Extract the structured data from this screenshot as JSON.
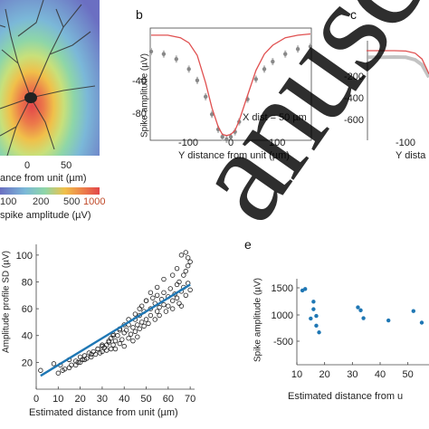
{
  "panel_a": {
    "xaxis_label": "ance from unit (µm)",
    "xticks": [
      "0",
      "50"
    ],
    "colorbar_ticks": [
      "100",
      "200",
      "500",
      "1000"
    ],
    "colorbar_label": "spike amplitude (µV)"
  },
  "panel_b": {
    "letter": "b",
    "ylabel": "Spike amplitude (µV)",
    "xlabel": "Y distance from unit (µm)",
    "annotation": "X dist = 50 µm",
    "yticks": [
      "-40",
      "-80"
    ],
    "xticks": [
      "-100",
      "0",
      "100"
    ]
  },
  "panel_c": {
    "letter": "c",
    "yticks": [
      "-200",
      "-400",
      "-600"
    ],
    "xticks": [
      "-100"
    ],
    "xlabel": "Y dista"
  },
  "panel_d": {
    "ylabel": "Amplitude profile SD (µV)",
    "xlabel": "Estimated distance from unit (µm)",
    "yticks": [
      "20",
      "40",
      "60",
      "80",
      "100"
    ],
    "xticks": [
      "0",
      "10",
      "20",
      "30",
      "40",
      "50",
      "60",
      "70"
    ]
  },
  "panel_e": {
    "letter": "e",
    "ylabel": "Spike amplitude (µV)",
    "xlabel": "Estimated distance from u",
    "yticks": [
      "1500",
      "1000",
      "-500"
    ],
    "xticks": [
      "10",
      "20",
      "30",
      "40",
      "50"
    ]
  },
  "chart_data": [
    {
      "type": "line",
      "panel": "b",
      "xlabel": "Y distance from unit (µm)",
      "ylabel": "Spike amplitude (µV)",
      "xlim": [
        -190,
        190
      ],
      "ylim": [
        -100,
        -12
      ],
      "series": [
        {
          "style": "red-model",
          "x": [
            -190,
            -150,
            -120,
            -100,
            -80,
            -60,
            -45,
            -30,
            -20,
            -10,
            0,
            10,
            20,
            40,
            60,
            80,
            100,
            130,
            160,
            190
          ],
          "y": [
            -17,
            -17,
            -19,
            -23,
            -33,
            -55,
            -75,
            -90,
            -96,
            -97,
            -96,
            -93,
            -85,
            -65,
            -45,
            -32,
            -25,
            -19,
            -17,
            -16
          ]
        },
        {
          "style": "grey-data",
          "x": [
            -190,
            -160,
            -130,
            -100,
            -80,
            -60,
            -45,
            -30,
            -20,
            -10,
            0,
            10,
            20,
            40,
            60,
            80,
            100,
            130,
            160,
            190
          ],
          "y": [
            -30,
            -32,
            -36,
            -44,
            -53,
            -66,
            -80,
            -92,
            -98,
            -100,
            -98,
            -94,
            -86,
            -68,
            -52,
            -44,
            -38,
            -32,
            -28,
            -26
          ]
        }
      ]
    },
    {
      "type": "line",
      "panel": "c",
      "xlim": [
        -170,
        100
      ],
      "ylim": [
        -700,
        -100
      ],
      "series": [
        {
          "style": "red-model",
          "x": [
            -170,
            -100,
            -50,
            0,
            40,
            70,
            100
          ],
          "y": [
            -160,
            -160,
            -160,
            -162,
            -175,
            -210,
            -300
          ]
        },
        {
          "style": "grey-data",
          "x": [
            -170,
            -100,
            -50,
            0,
            40,
            70,
            100
          ],
          "y": [
            -200,
            -200,
            -198,
            -200,
            -215,
            -245,
            -320
          ]
        }
      ]
    },
    {
      "type": "scatter",
      "panel": "d",
      "xlabel": "Estimated distance from unit (µm)",
      "ylabel": "Amplitude profile SD (µV)",
      "xlim": [
        0,
        72
      ],
      "ylim": [
        0,
        108
      ],
      "fit": {
        "x": [
          2,
          70
        ],
        "y": [
          10,
          78
        ]
      },
      "x": [
        2,
        8,
        11,
        13,
        15,
        16,
        18,
        19,
        20,
        21,
        22,
        23,
        24,
        25,
        26,
        27,
        28,
        29,
        30,
        30,
        31,
        32,
        32,
        33,
        34,
        34,
        35,
        35,
        36,
        36,
        37,
        38,
        38,
        39,
        40,
        40,
        41,
        42,
        42,
        43,
        44,
        44,
        45,
        45,
        46,
        46,
        47,
        47,
        48,
        48,
        49,
        49,
        50,
        50,
        51,
        52,
        52,
        53,
        54,
        54,
        55,
        55,
        56,
        56,
        57,
        58,
        58,
        59,
        60,
        60,
        61,
        62,
        62,
        63,
        64,
        64,
        65,
        65,
        66,
        66,
        67,
        67,
        68,
        68,
        69,
        69,
        70,
        70,
        69,
        68,
        66,
        64,
        62,
        58,
        55,
        52,
        50,
        47,
        45,
        42,
        40,
        38,
        35,
        33,
        30,
        28,
        25,
        22,
        20,
        18,
        15,
        12,
        10
      ],
      "y": [
        14,
        19,
        18,
        15,
        22,
        18,
        21,
        20,
        24,
        22,
        25,
        23,
        27,
        24,
        28,
        26,
        30,
        27,
        32,
        28,
        31,
        33,
        29,
        35,
        30,
        38,
        33,
        41,
        36,
        30,
        40,
        34,
        45,
        37,
        42,
        32,
        44,
        38,
        48,
        41,
        46,
        36,
        52,
        43,
        48,
        39,
        55,
        45,
        50,
        62,
        47,
        58,
        52,
        66,
        49,
        60,
        55,
        68,
        52,
        64,
        58,
        70,
        61,
        55,
        67,
        63,
        72,
        58,
        69,
        62,
        75,
        66,
        60,
        71,
        68,
        78,
        64,
        80,
        73,
        62,
        85,
        76,
        70,
        88,
        79,
        92,
        74,
        95,
        98,
        102,
        100,
        90,
        85,
        82,
        76,
        72,
        66,
        60,
        56,
        52,
        48,
        44,
        40,
        36,
        33,
        30,
        26,
        22,
        20,
        18,
        16,
        14,
        12
      ]
    },
    {
      "type": "scatter",
      "panel": "e",
      "xlabel": "Estimated distance from u",
      "ylabel": "Spike amplitude (µV)",
      "x": [
        12,
        13,
        15,
        16,
        16,
        17,
        17,
        18,
        32,
        33,
        34,
        43,
        52,
        55
      ],
      "y": [
        1380,
        1420,
        630,
        1080,
        880,
        700,
        440,
        260,
        930,
        850,
        640,
        580,
        830,
        520
      ]
    }
  ]
}
